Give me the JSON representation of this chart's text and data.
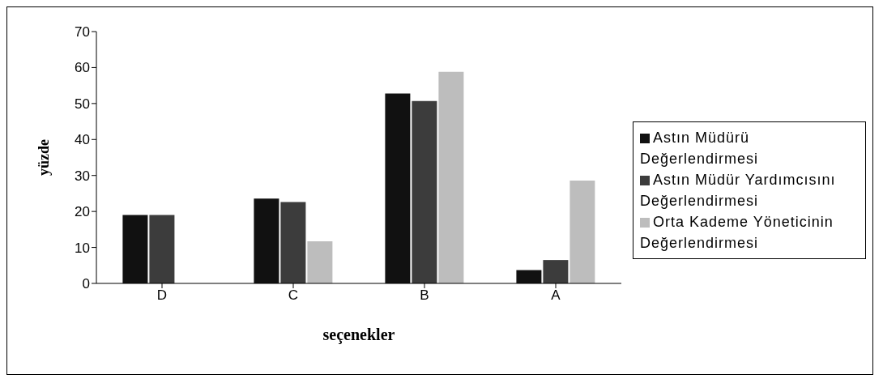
{
  "chart_data": {
    "type": "bar",
    "xlabel": "seçenekler",
    "ylabel": "yüzde",
    "categories": [
      "D",
      "C",
      "B",
      "A"
    ],
    "series": [
      {
        "name": "Astın Müdürü Değerlendirmesi",
        "color": "#111111",
        "values": [
          19,
          23.6,
          52.8,
          3.7
        ]
      },
      {
        "name": "Astın Müdür Yardımcısını Değerlendirmesi",
        "color": "#3c3c3c",
        "values": [
          19,
          22.6,
          50.7,
          6.5
        ]
      },
      {
        "name": "Orta Kademe Yöneticinin Değerlendirmesi",
        "color": "#bdbdbd",
        "values": [
          null,
          11.7,
          58.8,
          28.6
        ]
      }
    ],
    "ylim": [
      0,
      70
    ],
    "yticks": [
      0,
      10,
      20,
      30,
      40,
      50,
      60,
      70
    ],
    "grid": false,
    "legend": "right"
  }
}
